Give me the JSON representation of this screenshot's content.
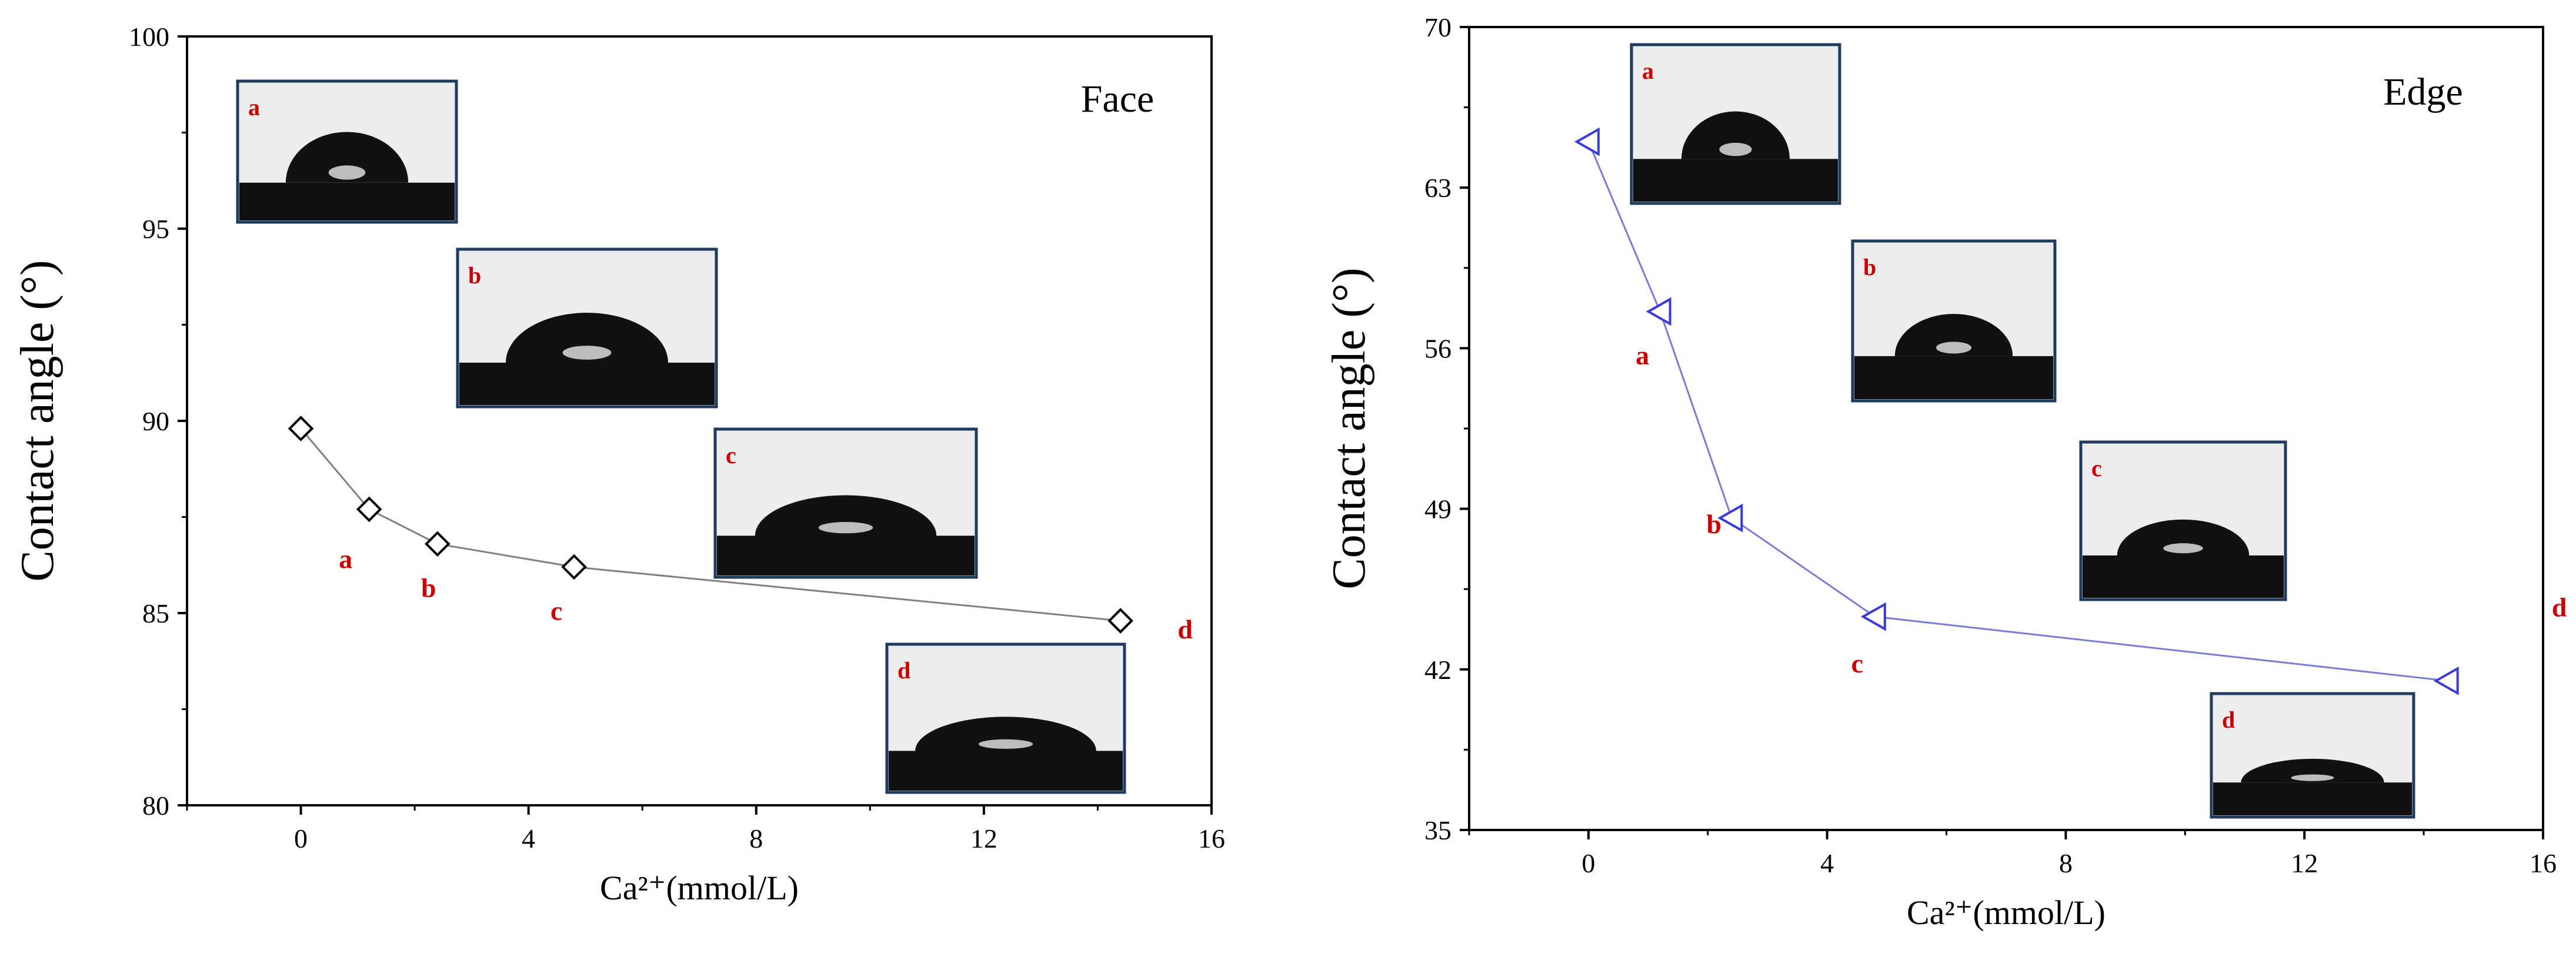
{
  "chart_data": [
    {
      "type": "line",
      "title": "Face",
      "xlabel": "Ca²⁺(mmol/L)",
      "ylabel": "Contact angle (°)",
      "xlim": [
        -2,
        16
      ],
      "ylim": [
        80,
        100
      ],
      "xticks": [
        0,
        4,
        8,
        12,
        16
      ],
      "yticks": [
        80,
        85,
        90,
        95,
        100
      ],
      "grid": false,
      "marker": "diamond",
      "line_color": "#808080",
      "marker_color": "#000000",
      "x": [
        0,
        1.2,
        2.4,
        4.8,
        14.4
      ],
      "y": [
        89.8,
        87.7,
        86.8,
        86.2,
        84.8
      ],
      "point_labels": [
        "",
        "a",
        "b",
        "c",
        "d"
      ],
      "insets": [
        "a",
        "b",
        "c",
        "d"
      ]
    },
    {
      "type": "line",
      "title": "Edge",
      "xlabel": "Ca²⁺(mmol/L)",
      "ylabel": "Contact angle (°)",
      "xlim": [
        -2,
        16
      ],
      "ylim": [
        35,
        70
      ],
      "xticks": [
        0,
        4,
        8,
        12,
        16
      ],
      "yticks": [
        35,
        42,
        49,
        56,
        63,
        70
      ],
      "grid": false,
      "marker": "left-triangle",
      "line_color": "#7b7bd6",
      "marker_color": "#3a3ad8",
      "x": [
        0,
        1.2,
        2.4,
        4.8,
        14.4
      ],
      "y": [
        65,
        57.6,
        48.6,
        44.3,
        41.5
      ],
      "point_labels": [
        "",
        "a",
        "b",
        "c",
        "d"
      ],
      "insets": [
        "a",
        "b",
        "c",
        "d"
      ]
    }
  ]
}
